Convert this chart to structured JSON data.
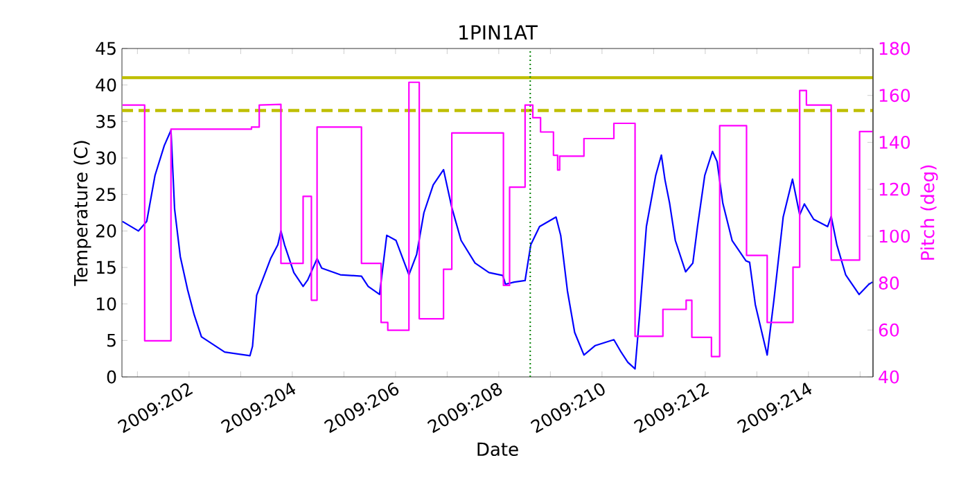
{
  "chart_data": {
    "type": "line",
    "title": "1PIN1AT",
    "xlabel": "Date",
    "ylabel": "Temperature (C)",
    "y2label": "Pitch (deg)",
    "xlim": [
      "2009-07-19T16:48",
      "2009-08-03T06:00"
    ],
    "xticks": [
      {
        "value": "2009-07-20",
        "label": null
      },
      {
        "value": "2009-07-21",
        "label": "2009:202"
      },
      {
        "value": "2009-07-22",
        "label": null
      },
      {
        "value": "2009-07-23",
        "label": "2009:204"
      },
      {
        "value": "2009-07-24",
        "label": null
      },
      {
        "value": "2009-07-25",
        "label": "2009:206"
      },
      {
        "value": "2009-07-26",
        "label": null
      },
      {
        "value": "2009-07-27",
        "label": "2009:208"
      },
      {
        "value": "2009-07-28",
        "label": null
      },
      {
        "value": "2009-07-29",
        "label": "2009:210"
      },
      {
        "value": "2009-07-30",
        "label": null
      },
      {
        "value": "2009-07-31",
        "label": "2009:212"
      },
      {
        "value": "2009-08-01",
        "label": null
      },
      {
        "value": "2009-08-02",
        "label": "2009:214"
      },
      {
        "value": "2009-08-03",
        "label": null
      }
    ],
    "ylim": [
      0,
      45
    ],
    "yticks": [
      0,
      5,
      10,
      15,
      20,
      25,
      30,
      35,
      40,
      45
    ],
    "y2lim": [
      40,
      180
    ],
    "y2ticks": [
      40,
      60,
      80,
      100,
      120,
      140,
      160,
      180
    ],
    "ref_lines": [
      {
        "axis": "y",
        "value": 41,
        "color": "#bfbf00",
        "line_style": "solid"
      },
      {
        "axis": "y",
        "value": 36.5,
        "color": "#bfbf00",
        "line_style": "dashed"
      },
      {
        "axis": "x",
        "value": "2009-07-27T14:38",
        "color": "#008000",
        "line_style": "dotted"
      }
    ],
    "series": [
      {
        "color": "#0000ff",
        "x": [
          "2009-07-19T17:02",
          "2009-07-20T00:29",
          "2009-07-20T04:19",
          "2009-07-20T08:10",
          "2009-07-20T12:29",
          "2009-07-20T15:36",
          "2009-07-20T17:17",
          "2009-07-20T19:55",
          "2009-07-20T23:17",
          "2009-07-21T02:24",
          "2009-07-21T05:46",
          "2009-07-21T16:34",
          "2009-07-22T04:19",
          "2009-07-22T05:31",
          "2009-07-22T07:26",
          "2009-07-22T13:55",
          "2009-07-22T17:17",
          "2009-07-22T18:43",
          "2009-07-22T20:24",
          "2009-07-23T00:43",
          "2009-07-23T05:02",
          "2009-07-23T07:12",
          "2009-07-23T11:31",
          "2009-07-23T13:41",
          "2009-07-23T22:19",
          "2009-07-24T08:10",
          "2009-07-24T11:17",
          "2009-07-24T16:34",
          "2009-07-24T19:55",
          "2009-07-25T00:14",
          "2009-07-25T06:14",
          "2009-07-25T09:50",
          "2009-07-25T13:12",
          "2009-07-25T17:31",
          "2009-07-25T22:19",
          "2009-07-26T02:10",
          "2009-07-26T06:29",
          "2009-07-26T12:58",
          "2009-07-26T19:26",
          "2009-07-27T01:55",
          "2009-07-27T03:07",
          "2009-07-27T07:12",
          "2009-07-27T12:14",
          "2009-07-27T14:53",
          "2009-07-27T18:58",
          "2009-07-28T02:38",
          "2009-07-28T04:48",
          "2009-07-28T07:55",
          "2009-07-28T11:17",
          "2009-07-28T15:36",
          "2009-07-28T20:53",
          "2009-07-29T05:31",
          "2009-07-29T08:53",
          "2009-07-29T12:00",
          "2009-07-29T15:22",
          "2009-07-29T17:31",
          "2009-07-29T20:38",
          "2009-07-30T00:58",
          "2009-07-30T03:36",
          "2009-07-30T05:17",
          "2009-07-30T07:26",
          "2009-07-30T10:05",
          "2009-07-30T14:53",
          "2009-07-30T18:14",
          "2009-07-30T20:24",
          "2009-07-30T23:46",
          "2009-07-31T03:22",
          "2009-07-31T05:31",
          "2009-07-31T08:10",
          "2009-07-31T12:29",
          "2009-07-31T18:58",
          "2009-07-31T20:38",
          "2009-07-31T23:17",
          "2009-08-01T04:48",
          "2009-08-01T07:55",
          "2009-08-01T12:14",
          "2009-08-01T16:34",
          "2009-08-01T19:55",
          "2009-08-01T22:05",
          "2009-08-02T02:24",
          "2009-08-02T08:53",
          "2009-08-02T10:34",
          "2009-08-02T13:12",
          "2009-08-02T17:17",
          "2009-08-02T23:31",
          "2009-08-03T04:05",
          "2009-08-03T05:46"
        ],
        "values": [
          21.3,
          20.0,
          21.3,
          27.6,
          31.7,
          33.8,
          23.0,
          16.5,
          12.0,
          8.5,
          5.5,
          3.4,
          2.9,
          4.2,
          11.2,
          16.2,
          18.1,
          20.0,
          18.1,
          14.3,
          12.4,
          13.3,
          16.2,
          14.9,
          14.0,
          13.8,
          12.4,
          11.3,
          19.4,
          18.7,
          14.0,
          16.8,
          22.5,
          26.3,
          28.4,
          23.2,
          18.7,
          15.6,
          14.3,
          13.9,
          12.7,
          13.0,
          13.2,
          18.1,
          20.6,
          21.9,
          19.4,
          11.8,
          6.1,
          3.0,
          4.3,
          5.1,
          3.4,
          2.0,
          1.1,
          8.6,
          20.6,
          27.6,
          30.4,
          27.0,
          23.8,
          18.7,
          14.4,
          15.6,
          20.6,
          27.6,
          30.9,
          29.5,
          23.8,
          18.7,
          15.9,
          15.7,
          9.9,
          3.0,
          10.5,
          21.9,
          27.1,
          22.2,
          23.7,
          21.6,
          20.6,
          22.0,
          18.1,
          14.0,
          11.3,
          12.7,
          13.0
        ]
      },
      {
        "axis": "y2",
        "color": "#ff00ff",
        "x": [
          "2009-07-19T17:02",
          "2009-07-20T03:22",
          "2009-07-20T03:22",
          "2009-07-20T15:36",
          "2009-07-20T15:36",
          "2009-07-22T05:02",
          "2009-07-22T05:02",
          "2009-07-22T08:38",
          "2009-07-22T08:38",
          "2009-07-22T18:43",
          "2009-07-22T18:43",
          "2009-07-23T05:02",
          "2009-07-23T05:02",
          "2009-07-23T08:53",
          "2009-07-23T08:53",
          "2009-07-23T11:31",
          "2009-07-23T11:31",
          "2009-07-24T08:10",
          "2009-07-24T08:10",
          "2009-07-24T17:17",
          "2009-07-24T17:17",
          "2009-07-24T20:24",
          "2009-07-24T20:24",
          "2009-07-25T06:14",
          "2009-07-25T06:14",
          "2009-07-25T11:02",
          "2009-07-25T11:02",
          "2009-07-25T22:19",
          "2009-07-25T22:19",
          "2009-07-26T02:10",
          "2009-07-26T02:10",
          "2009-07-27T02:10",
          "2009-07-27T02:10",
          "2009-07-27T05:02",
          "2009-07-27T05:02",
          "2009-07-27T12:14",
          "2009-07-27T12:14",
          "2009-07-27T15:50",
          "2009-07-27T15:50",
          "2009-07-27T19:26",
          "2009-07-27T19:26",
          "2009-07-28T01:26",
          "2009-07-28T01:26",
          "2009-07-28T03:22",
          "2009-07-28T03:22",
          "2009-07-28T04:19",
          "2009-07-28T04:19",
          "2009-07-28T15:36",
          "2009-07-28T15:36",
          "2009-07-29T05:31",
          "2009-07-29T05:31",
          "2009-07-29T15:22",
          "2009-07-29T15:22",
          "2009-07-30T04:19",
          "2009-07-30T04:19",
          "2009-07-30T15:07",
          "2009-07-30T15:07",
          "2009-07-30T17:46",
          "2009-07-30T17:46",
          "2009-07-31T02:53",
          "2009-07-31T02:53",
          "2009-07-31T06:43",
          "2009-07-31T06:43",
          "2009-07-31T19:12",
          "2009-07-31T19:12",
          "2009-08-01T04:48",
          "2009-08-01T04:48",
          "2009-08-01T16:48",
          "2009-08-01T16:48",
          "2009-08-01T19:55",
          "2009-08-01T19:55",
          "2009-08-01T23:02",
          "2009-08-01T23:02",
          "2009-08-02T10:34",
          "2009-08-02T10:34",
          "2009-08-02T23:46",
          "2009-08-02T23:46",
          "2009-08-03T05:46"
        ],
        "values": [
          155.9,
          155.9,
          55.4,
          55.4,
          145.6,
          145.6,
          146.5,
          146.5,
          155.9,
          156.2,
          88.4,
          88.4,
          117.0,
          117.0,
          72.7,
          72.7,
          146.5,
          146.5,
          88.4,
          88.4,
          63.2,
          63.2,
          59.9,
          59.9,
          165.6,
          165.6,
          64.8,
          64.8,
          85.9,
          85.9,
          144.0,
          144.0,
          79.0,
          79.0,
          120.9,
          120.9,
          155.9,
          155.9,
          150.5,
          150.5,
          144.4,
          144.4,
          134.5,
          134.5,
          128.2,
          128.2,
          134.1,
          134.1,
          141.6,
          141.6,
          148.1,
          148.1,
          57.3,
          57.3,
          68.8,
          68.8,
          72.7,
          72.7,
          56.9,
          56.9,
          48.7,
          48.7,
          147.1,
          147.1,
          91.8,
          91.8,
          63.2,
          63.2,
          86.8,
          86.8,
          162.1,
          162.1,
          155.9,
          155.9,
          89.8,
          89.8,
          144.6,
          144.6
        ]
      }
    ]
  }
}
